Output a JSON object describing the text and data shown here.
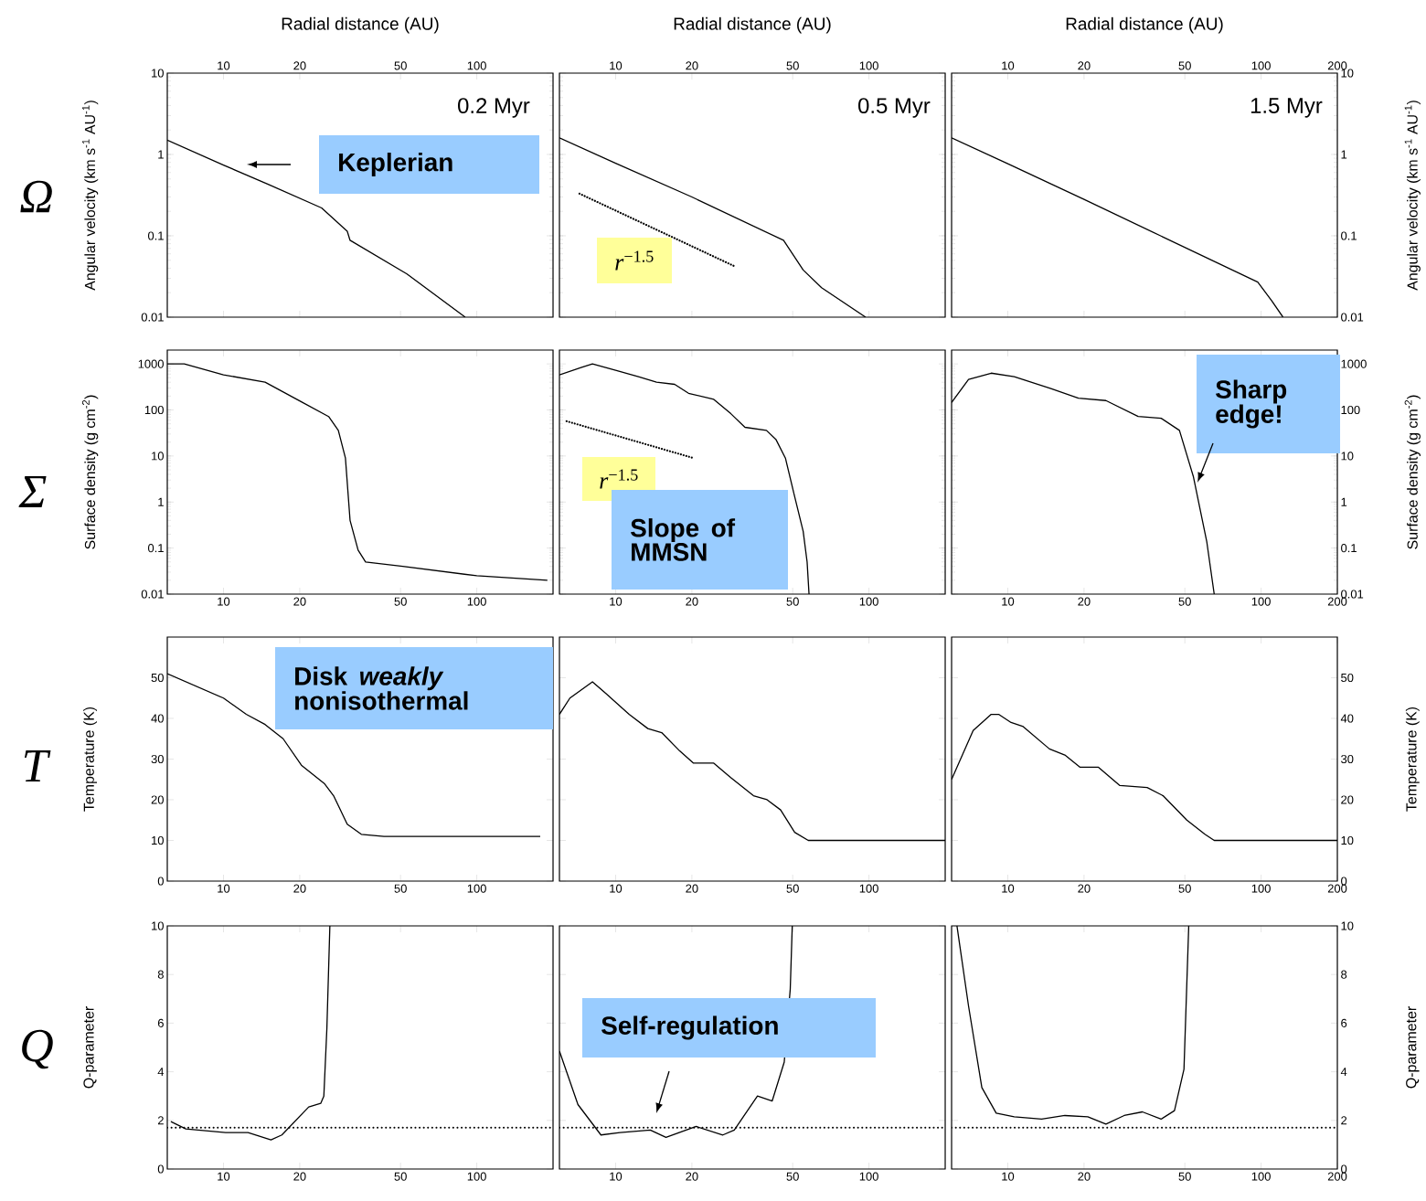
{
  "chart_data": [
    {
      "type": "line",
      "xlabel": "Radial distance (AU)",
      "ylabel": "Angular velocity (km s$^{-1}$ AU$^{-1}$)",
      "log": "xy",
      "xlim": [
        6,
        200
      ],
      "ylim": [
        0.01,
        10
      ],
      "xticks": [
        10,
        20,
        50,
        100
      ],
      "yticks": [
        0.01,
        0.1,
        1,
        10
      ],
      "series": [
        {
          "color": "#000000",
          "x": [
            6,
            10,
            15,
            24.4,
            30.8,
            31.6,
            53,
            90
          ],
          "values": [
            1.5,
            0.74,
            0.43,
            0.22,
            0.114,
            0.088,
            0.034,
            0.01
          ]
        }
      ],
      "annotations": [
        "Ω",
        "0.2 Myr",
        "Keplerian"
      ]
    },
    {
      "type": "line",
      "xlabel": "Radial distance (AU)",
      "log": "xy",
      "xlim": [
        6,
        200
      ],
      "ylim": [
        0.01,
        10
      ],
      "xticks": [
        10,
        20,
        50,
        100
      ],
      "yticks": [
        0.01,
        0.1,
        1,
        10
      ],
      "tick_labels": "x",
      "series": [
        {
          "color": "#000000",
          "x": [
            6,
            10,
            20,
            46,
            55,
            65,
            97
          ],
          "values": [
            1.6,
            0.78,
            0.3,
            0.088,
            0.038,
            0.023,
            0.01
          ]
        },
        {
          "color": "#000000",
          "line_style": "dotted",
          "x": [
            7.2,
            29.6
          ],
          "values": [
            0.33,
            0.042
          ]
        }
      ],
      "annotations": [
        "0.5 Myr",
        "*r*$^{−1.5}$"
      ]
    },
    {
      "type": "line",
      "xlabel": "Radial distance (AU)",
      "ylabel": "Angular velocity (km s$^{-1}$ AU$^{-1}$)",
      "log": "xy",
      "xlim": [
        6,
        200
      ],
      "ylim": [
        0.01,
        10
      ],
      "xticks": [
        10,
        20,
        50,
        100,
        200
      ],
      "yticks": [
        0.01,
        0.1,
        1,
        10
      ],
      "series": [
        {
          "color": "#000000",
          "x": [
            6,
            10,
            20,
            97,
            110,
            122
          ],
          "values": [
            1.6,
            0.77,
            0.28,
            0.027,
            0.016,
            0.01
          ]
        }
      ],
      "annotations": [
        "1.5 Myr"
      ]
    },
    {
      "type": "line",
      "ylabel": "Surface density (g cm$^{-2}$)",
      "log": "xy",
      "xlim": [
        6,
        200
      ],
      "ylim": [
        0.01,
        2000
      ],
      "xticks": [
        10,
        20,
        50,
        100
      ],
      "yticks": [
        0.01,
        0.1,
        1,
        10,
        100,
        1000
      ],
      "series": [
        {
          "color": "#000000",
          "x": [
            6,
            7,
            10,
            14.6,
            20.3,
            26,
            28.4,
            30.3,
            31.6,
            34,
            36.4,
            51,
            100,
            190
          ],
          "values": [
            1000,
            1000,
            580,
            400,
            150,
            72,
            36,
            9,
            0.4,
            0.09,
            0.05,
            0.04,
            0.025,
            0.02
          ]
        }
      ],
      "annotations": [
        "Σ"
      ]
    },
    {
      "type": "line",
      "log": "xy",
      "xlim": [
        6,
        200
      ],
      "ylim": [
        0.01,
        2000
      ],
      "xticks": [
        10,
        20,
        50,
        100
      ],
      "yticks": [
        0.01,
        0.1,
        1,
        10,
        100,
        1000
      ],
      "tick_labels": "x",
      "series": [
        {
          "color": "#000000",
          "x": [
            6,
            7.3,
            8.1,
            10,
            12.3,
            14.5,
            17.1,
            19.4,
            24.4,
            28.5,
            32.4,
            39.4,
            42.9,
            46.8,
            50.6,
            55,
            57,
            58
          ],
          "values": [
            580,
            830,
            1000,
            730,
            530,
            400,
            360,
            230,
            170,
            83,
            42,
            36,
            23,
            9,
            1.5,
            0.23,
            0.05,
            0.01
          ]
        },
        {
          "color": "#000000",
          "line_style": "dotted",
          "x": [
            6.4,
            20.3
          ],
          "values": [
            57,
            9
          ]
        }
      ],
      "annotations": [
        "*r*$^{−1.5}$",
        "Slope of MMSN"
      ]
    },
    {
      "type": "line",
      "ylabel": "Surface density (g cm$^{-2}$)",
      "log": "xy",
      "xlim": [
        6,
        200
      ],
      "ylim": [
        0.01,
        2000
      ],
      "xticks": [
        10,
        20,
        50,
        100,
        200
      ],
      "yticks": [
        0.01,
        0.1,
        1,
        10,
        100,
        1000
      ],
      "series": [
        {
          "color": "#000000",
          "x": [
            6,
            7,
            8.6,
            10.6,
            14.8,
            19,
            24.4,
            32.7,
            40.3,
            47.6,
            54,
            61,
            65.3
          ],
          "values": [
            145,
            460,
            630,
            530,
            290,
            180,
            160,
            72,
            66,
            36,
            3.6,
            0.14,
            0.01
          ]
        }
      ],
      "annotations": [
        "Sharp edge!"
      ]
    },
    {
      "type": "line",
      "ylabel": "Temperature (K)",
      "log": "x",
      "xlim": [
        6,
        200
      ],
      "ylim": [
        0,
        60
      ],
      "xticks": [
        10,
        20,
        50,
        100
      ],
      "yticks": [
        0,
        10,
        20,
        30,
        40,
        50
      ],
      "series": [
        {
          "color": "#000000",
          "x": [
            6,
            10,
            12.3,
            14.6,
            17.2,
            20.3,
            25,
            27.2,
            30.8,
            35,
            43,
            178
          ],
          "values": [
            51,
            45,
            41,
            38.5,
            35,
            28.5,
            24,
            21,
            14,
            11.5,
            11,
            11
          ]
        }
      ],
      "annotations": [
        "T",
        "Disk *weakly* nonisothermal"
      ]
    },
    {
      "type": "line",
      "log": "x",
      "xlim": [
        6,
        200
      ],
      "ylim": [
        0,
        60
      ],
      "xticks": [
        10,
        20,
        50,
        100
      ],
      "yticks": [
        0,
        10,
        20,
        30,
        40,
        50
      ],
      "tick_labels": "x",
      "series": [
        {
          "color": "#000000",
          "x": [
            6,
            6.6,
            8.1,
            9.2,
            11.3,
            13.4,
            15.2,
            17.9,
            20.3,
            24.4,
            28.4,
            35,
            39.6,
            44.8,
            50.9,
            57.6,
            200
          ],
          "values": [
            41,
            45,
            49,
            46,
            41,
            37.5,
            36.5,
            32,
            29,
            29,
            25.5,
            21,
            20,
            17.5,
            12,
            10,
            10
          ]
        }
      ]
    },
    {
      "type": "line",
      "ylabel": "Temperature (K)",
      "log": "x",
      "xlim": [
        6,
        200
      ],
      "ylim": [
        0,
        60
      ],
      "xticks": [
        10,
        20,
        50,
        100,
        200
      ],
      "yticks": [
        0,
        10,
        20,
        30,
        40,
        50
      ],
      "series": [
        {
          "color": "#000000",
          "x": [
            6,
            7.3,
            8.6,
            9.2,
            10.3,
            11.5,
            14.6,
            16.8,
            19.3,
            22.8,
            27.7,
            35.5,
            41,
            50.9,
            60,
            65.3,
            200
          ],
          "values": [
            25,
            37,
            41,
            41,
            39,
            38,
            32.5,
            31,
            28,
            28,
            23.5,
            23,
            21,
            15,
            11.5,
            10,
            10
          ]
        }
      ]
    },
    {
      "type": "line",
      "ylabel": "Q-parameter",
      "log": "x",
      "xlim": [
        6,
        200
      ],
      "ylim": [
        0,
        10
      ],
      "xticks": [
        10,
        20,
        50,
        100
      ],
      "yticks": [
        0,
        2,
        4,
        6,
        8,
        10
      ],
      "series": [
        {
          "color": "#000000",
          "x": [
            6.2,
            7.1,
            10.2,
            12.5,
            15.4,
            17,
            21.7,
            24.2,
            24.9,
            25.6,
            26.3
          ],
          "values": [
            1.95,
            1.65,
            1.5,
            1.5,
            1.2,
            1.4,
            2.55,
            2.7,
            3,
            5.8,
            10
          ]
        }
      ],
      "ref_lines": [
        {
          "axis": "y",
          "value": 1.7,
          "line_style": "dotted"
        }
      ],
      "annotations": [
        "Q"
      ]
    },
    {
      "type": "line",
      "log": "x",
      "xlim": [
        6,
        200
      ],
      "ylim": [
        0,
        10
      ],
      "xticks": [
        10,
        20,
        50,
        100
      ],
      "yticks": [
        0,
        2,
        4,
        6,
        8,
        10
      ],
      "tick_labels": "x",
      "series": [
        {
          "color": "#000000",
          "x": [
            6,
            7.1,
            8.75,
            10.4,
            13.7,
            15.8,
            20.8,
            26.5,
            29.4,
            36.3,
            41.5,
            46.3,
            48.9,
            49.8
          ],
          "values": [
            4.85,
            2.65,
            1.4,
            1.5,
            1.6,
            1.3,
            1.75,
            1.4,
            1.6,
            3,
            2.8,
            4.4,
            7.4,
            10
          ]
        }
      ],
      "ref_lines": [
        {
          "axis": "y",
          "value": 1.7,
          "line_style": "dotted"
        }
      ],
      "annotations": [
        "Self-regulation"
      ]
    },
    {
      "type": "line",
      "ylabel": "Q-parameter",
      "log": "x",
      "xlim": [
        6,
        200
      ],
      "ylim": [
        0,
        10
      ],
      "xticks": [
        10,
        20,
        50,
        100,
        200
      ],
      "yticks": [
        0,
        2,
        4,
        6,
        8,
        10
      ],
      "series": [
        {
          "color": "#000000",
          "x": [
            6.3,
            7,
            7.9,
            9,
            10.6,
            13.6,
            16.8,
            20.7,
            24.4,
            28.8,
            34,
            40.3,
            45.5,
            49.6,
            51.8
          ],
          "values": [
            10,
            6.7,
            3.35,
            2.3,
            2.15,
            2.05,
            2.2,
            2.15,
            1.85,
            2.2,
            2.35,
            2.05,
            2.4,
            4.1,
            10
          ]
        }
      ],
      "ref_lines": [
        {
          "axis": "y",
          "value": 1.7,
          "line_style": "dotted"
        }
      ]
    }
  ]
}
